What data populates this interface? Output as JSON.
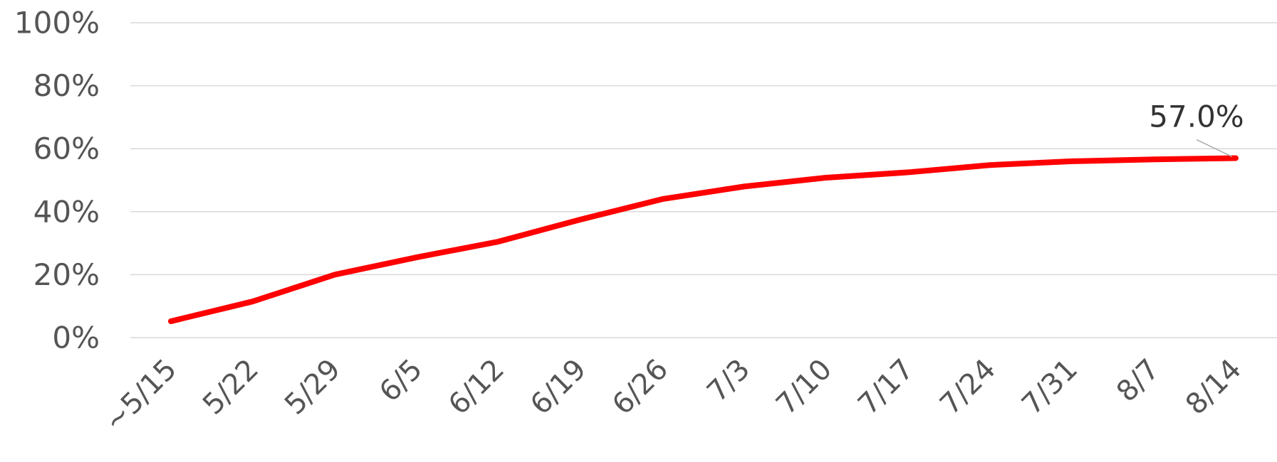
{
  "chart_data": {
    "type": "line",
    "title": "",
    "xlabel": "",
    "ylabel": "",
    "categories": [
      "~5/15",
      "5/22",
      "5/29",
      "6/5",
      "6/12",
      "6/19",
      "6/26",
      "7/3",
      "7/10",
      "7/17",
      "7/24",
      "7/31",
      "8/7",
      "8/14"
    ],
    "series": [
      {
        "values": [
          5.2,
          11.5,
          20.0,
          25.5,
          30.5,
          37.5,
          44.0,
          48.0,
          50.8,
          52.5,
          54.8,
          56.0,
          56.6,
          57.0
        ],
        "color": "#ff0000"
      }
    ],
    "y_ticks": [
      "0%",
      "20%",
      "40%",
      "60%",
      "80%",
      "100%"
    ],
    "ylim": [
      0,
      100
    ],
    "grid": true,
    "legend": "none",
    "data_labels": [
      {
        "category": "8/14",
        "text": "57.0%"
      }
    ],
    "colors": {
      "grid": "#d9d9d9",
      "text": "#555555",
      "leader": "#a6a6a6"
    }
  }
}
